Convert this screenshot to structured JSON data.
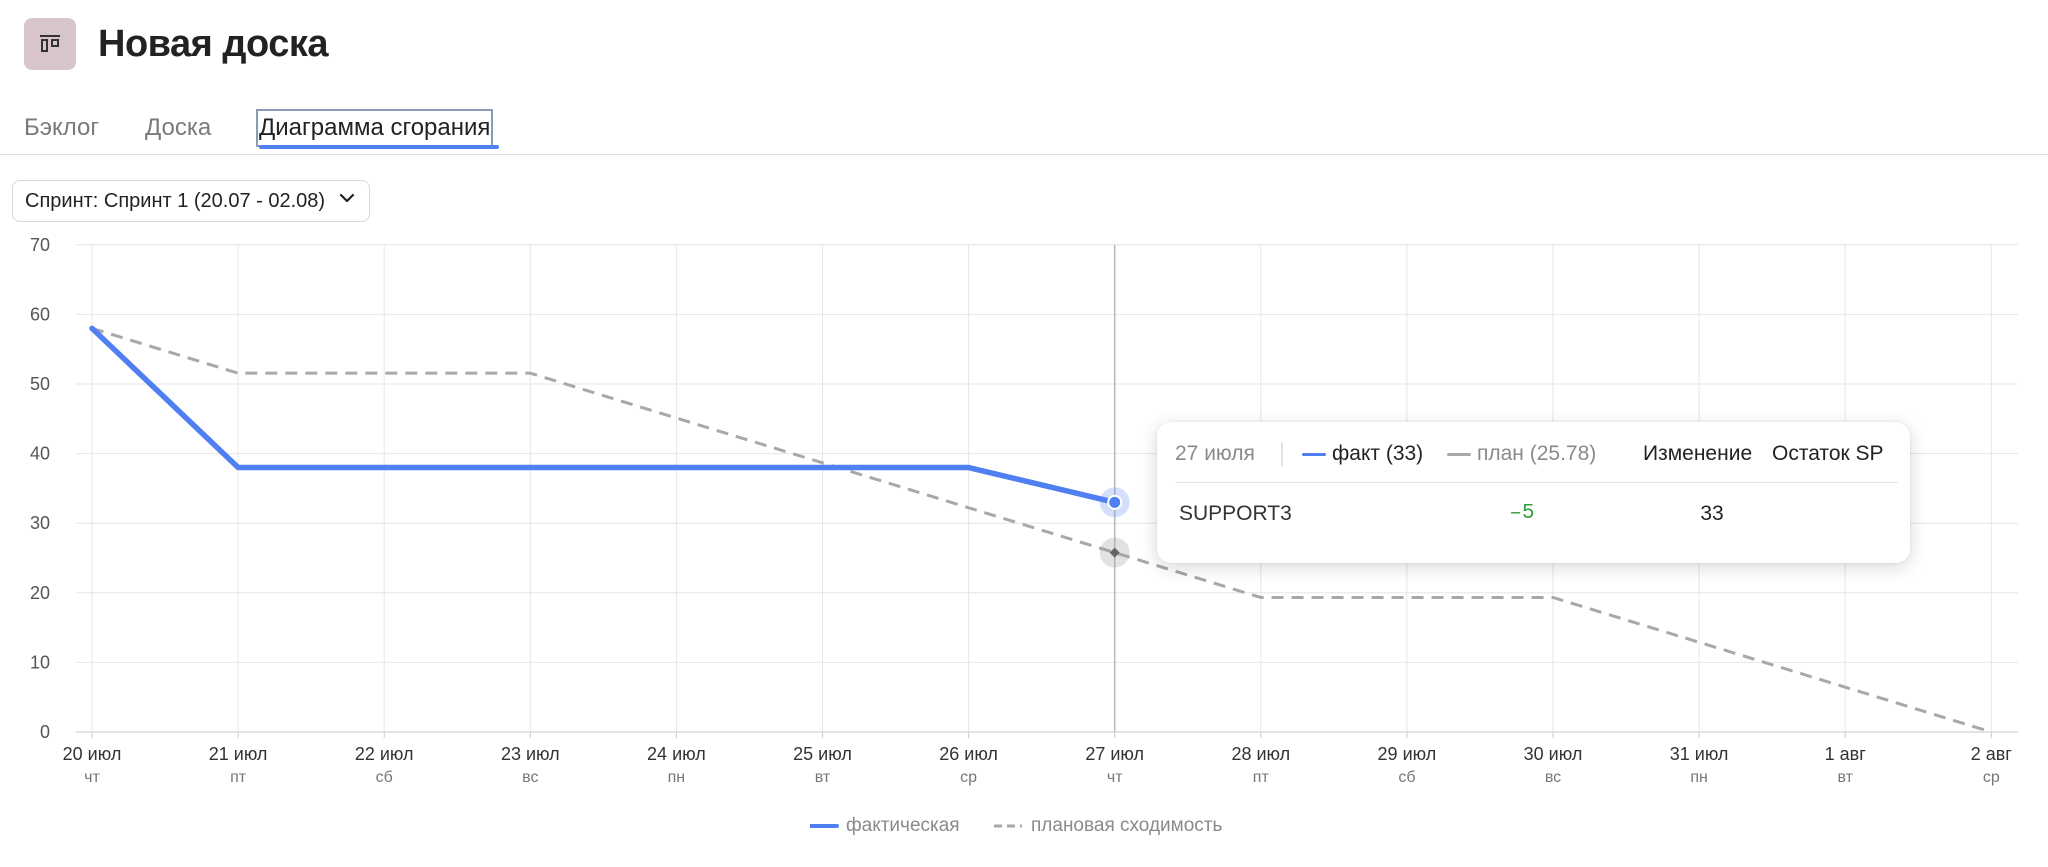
{
  "board": {
    "title": "Новая доска",
    "icon": "board-icon"
  },
  "tabs": [
    {
      "label": "Бэклог",
      "active": false
    },
    {
      "label": "Доска",
      "active": false
    },
    {
      "label": "Диаграмма сгорания",
      "active": true
    }
  ],
  "sprint_filter": {
    "label": "Спринт: Спринт 1 (20.07 - 02.08)",
    "icon": "chevron-down-icon"
  },
  "colors": {
    "fact": "#4f7ff0",
    "plan": "#a8a8a8",
    "accent": "#4f7ff0",
    "positive_change": "#2e9e3a",
    "icon_bg": "#d8c4cc"
  },
  "tooltip": {
    "date": "27 июля",
    "fact_label": "факт (33)",
    "plan_label": "план (25.78)",
    "change_header": "Изменение",
    "rest_header": "Остаток SP",
    "row": {
      "key": "SUPPORT3",
      "change": "–5",
      "rest": "33"
    }
  },
  "legend": {
    "fact": "фактическая",
    "plan": "плановая сходимость"
  },
  "chart_data": {
    "type": "line",
    "x_labels": [
      "20 июл",
      "21 июл",
      "22 июл",
      "23 июл",
      "24 июл",
      "25 июл",
      "26 июл",
      "27 июл",
      "28 июл",
      "29 июл",
      "30 июл",
      "31 июл",
      "1 авг",
      "2 авг"
    ],
    "x_sublabels": [
      "чт",
      "пт",
      "сб",
      "вс",
      "пн",
      "вт",
      "ср",
      "чт",
      "пт",
      "сб",
      "вс",
      "пн",
      "вт",
      "ср"
    ],
    "y_ticks": [
      0,
      10,
      20,
      30,
      40,
      50,
      60,
      70
    ],
    "ylim": [
      0,
      70
    ],
    "series": [
      {
        "name": "фактическая",
        "style": "solid",
        "x_index": [
          0,
          1,
          2,
          3,
          4,
          5,
          6,
          7
        ],
        "values": [
          58,
          38,
          38,
          38,
          38,
          38,
          38,
          33
        ]
      },
      {
        "name": "плановая сходимость",
        "style": "dashed",
        "x_index": [
          0,
          1,
          2,
          3,
          4,
          5,
          6,
          7,
          8,
          9,
          10,
          11,
          12,
          13
        ],
        "values": [
          58,
          51.56,
          51.56,
          51.56,
          45.11,
          38.67,
          32.22,
          25.78,
          19.33,
          19.33,
          19.33,
          12.89,
          6.44,
          0
        ]
      }
    ],
    "highlight": {
      "date": "27 июл",
      "fact": 33,
      "plan": 25.78
    }
  }
}
